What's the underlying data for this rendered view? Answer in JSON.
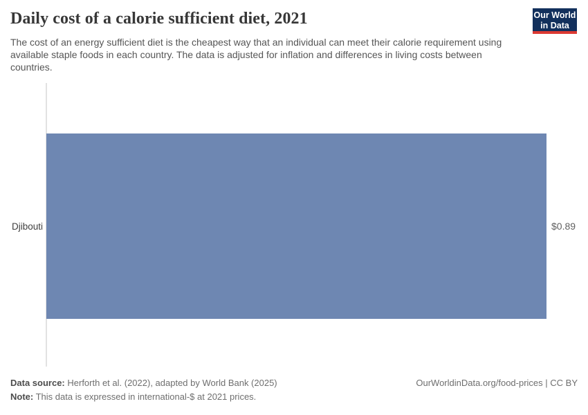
{
  "header": {
    "title": "Daily cost of a calorie sufficient diet, 2021",
    "subtitle": "The cost of an energy sufficient diet is the cheapest way that an individual can meet their calorie requirement using available staple foods in each country. The data is adjusted for inflation and differences in living costs between countries.",
    "logo": {
      "line1": "Our World",
      "line2": "in Data"
    }
  },
  "chart_data": {
    "type": "bar",
    "orientation": "horizontal",
    "title": "Daily cost of a calorie sufficient diet, 2021",
    "categories": [
      "Djibouti"
    ],
    "values": [
      0.89
    ],
    "value_labels": [
      "$0.89"
    ],
    "xlim": [
      0,
      0.89
    ],
    "grid": false,
    "legend": false,
    "bar_color": "#6e87b2"
  },
  "footer": {
    "data_source_label": "Data source:",
    "data_source_value": "Herforth et al. (2022), adapted by World Bank (2025)",
    "note_label": "Note:",
    "note_value": "This data is expressed in international-$ at 2021 prices.",
    "link": "OurWorldinData.org/food-prices | CC BY"
  },
  "colors": {
    "logo_background": "#12305c",
    "logo_underline": "#dc3932",
    "bar": "#6e87b2",
    "axis_line": "#e2e2e2"
  }
}
